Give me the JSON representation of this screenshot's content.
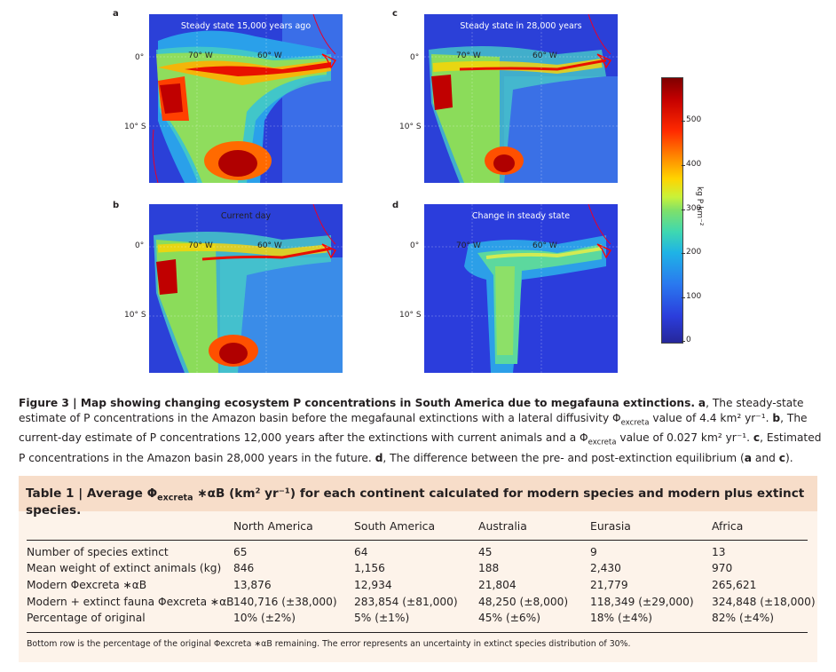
{
  "panels": [
    {
      "letter": "a",
      "title": "Steady state 15,000 years ago"
    },
    {
      "letter": "b",
      "title": "Current day"
    },
    {
      "letter": "c",
      "title": "Steady state in 28,000 years"
    },
    {
      "letter": "d",
      "title": "Change in steady state"
    }
  ],
  "map_labels": {
    "lon1": "70° W",
    "lon2": "60° W",
    "lat0": "0°",
    "lat10": "10° S"
  },
  "colorbar": {
    "ticks": [
      "500",
      "400",
      "300",
      "200",
      "100",
      "0"
    ],
    "unit": "kg P km⁻²",
    "colors": [
      "#7f0000",
      "#ff2a00",
      "#ffd400",
      "#7fe06a",
      "#1fb3e6",
      "#26279a"
    ]
  },
  "caption": {
    "lead": "Figure 3 | Map showing changing ecosystem P concentrations in South America due to megafauna extinctions.",
    "a_label": "a",
    "a_text": ", The steady-state estimate of P concentrations in the Amazon basin before the megafaunal extinctions with a lateral diffusivity Φ",
    "sub": "excreta",
    "a_val": " value of 4.4 km² yr⁻¹. ",
    "b_label": "b",
    "b_text": ", The current-day estimate of P concentrations 12,000 years after the extinctions with current animals and a Φ",
    "b_val": " value of 0.027 km² yr⁻¹. ",
    "c_label": "c",
    "c_text": ", Estimated P concentrations in the Amazon basin 28,000 years in the future. ",
    "d_label": "d",
    "d_text": ", The difference between the pre- and post-extinction equilibrium (",
    "d_a": "a",
    "d_and": " and ",
    "d_c": "c",
    "d_end": ")."
  },
  "table": {
    "title_pre": "Table 1 | Average Φ",
    "title_sub": "excreta",
    "title_post": " ∗αB (km² yr⁻¹) for each continent calculated for modern species and modern plus extinct species.",
    "columns": [
      "North America",
      "South America",
      "Australia",
      "Eurasia",
      "Africa"
    ],
    "rows": [
      {
        "label": "Number of species extinct",
        "values": [
          "65",
          "64",
          "45",
          "9",
          "13"
        ]
      },
      {
        "label": "Mean weight of extinct animals (kg)",
        "values": [
          "846",
          "1,156",
          "188",
          "2,430",
          "970"
        ]
      },
      {
        "label": "Modern Φexcreta ∗αB",
        "values": [
          "13,876",
          "12,934",
          "21,804",
          "21,779",
          "265,621"
        ]
      },
      {
        "label": "Modern + extinct fauna Φexcreta ∗αB",
        "values": [
          "140,716 (±38,000)",
          "283,854 (±81,000)",
          "48,250 (±8,000)",
          "118,349 (±29,000)",
          "324,848 (±18,000)"
        ]
      },
      {
        "label": "Percentage of original",
        "values": [
          "10% (±2%)",
          "5% (±1%)",
          "45% (±6%)",
          "18% (±4%)",
          "82% (±4%)"
        ]
      }
    ],
    "footnote": "Bottom row is the percentage of the original Φexcreta ∗αB remaining. The error represents an uncertainty in extinct species distribution of 30%."
  }
}
